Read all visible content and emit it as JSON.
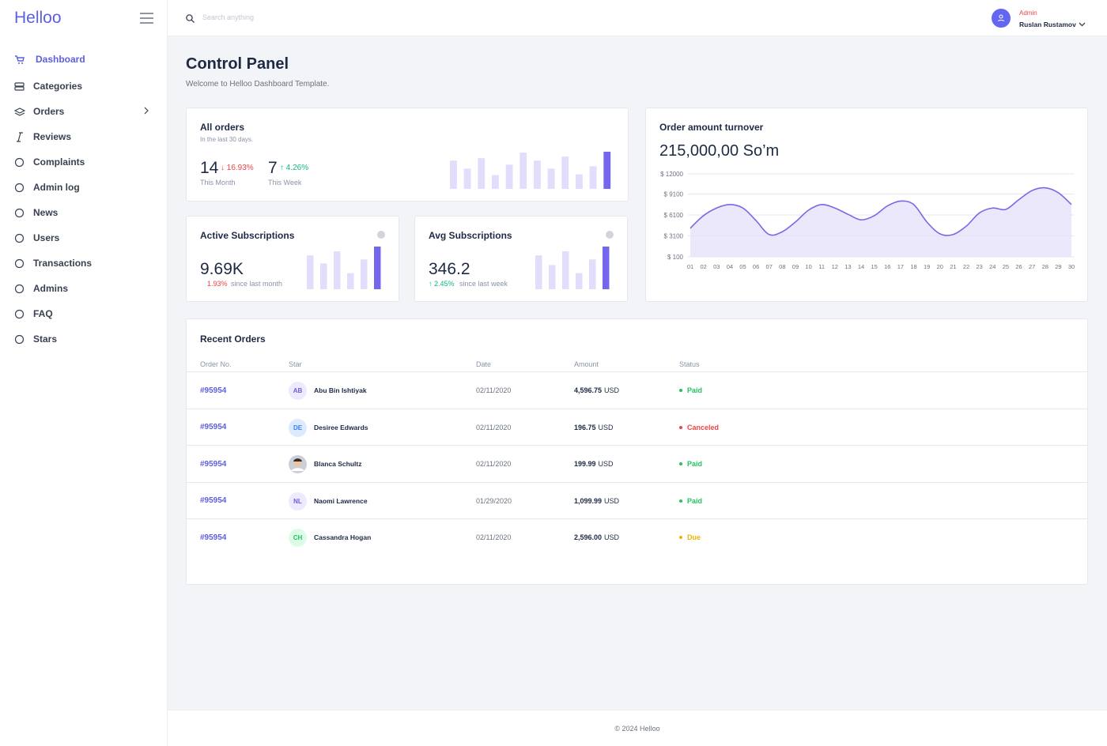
{
  "sidebar": {
    "brand": "Helloo",
    "nav": [
      "Dashboard",
      "Categories",
      "Orders",
      "Reviews",
      "Complaints",
      "Admin log",
      "News",
      "Users",
      "Transactions",
      "Admins",
      "FAQ",
      "Stars"
    ],
    "active": 0
  },
  "header": {
    "search_placeholder": "Search anything",
    "role": "Admin",
    "user": "Ruslan Rustamov"
  },
  "page": {
    "title": "Control Panel",
    "subtitle": "Welcome to Helloo Dashboard Template."
  },
  "cards": {
    "all_orders": {
      "title": "All orders",
      "subtitle": "In the last 30 days.",
      "month_value": "14",
      "month_change": "↓ 16.93%",
      "month_label": "This Month",
      "week_value": "7",
      "week_change": "↑ 4.26%",
      "week_label": "This Week"
    },
    "active": {
      "title": "Active Subscriptions",
      "value": "9.69K",
      "change": "1.93%",
      "note": "since last month"
    },
    "avg": {
      "title": "Avg Subscriptions",
      "value": "346.2",
      "change": "↑ 2.45%",
      "note": "since last week"
    },
    "turnover": {
      "title": "Order amount turnover",
      "value": "215,000,00 So’m"
    }
  },
  "chart_data": [
    {
      "type": "bar",
      "values": [
        35,
        25,
        38,
        17,
        30,
        45,
        35,
        25,
        40,
        18,
        28,
        46
      ],
      "color": "#e1ddfb",
      "highlight_color": "#7467ee"
    },
    {
      "type": "bar",
      "values": [
        42,
        32,
        47,
        20,
        37,
        53
      ],
      "color": "#e1ddfb",
      "highlight_color": "#7467ee"
    },
    {
      "type": "bar",
      "values": [
        42,
        30,
        47,
        20,
        37,
        53
      ],
      "color": "#e1ddfb",
      "highlight_color": "#7467ee"
    },
    {
      "type": "line",
      "color": "#7a68e6",
      "fill": "#e6e2fb",
      "grid": true,
      "categories": [
        "01",
        "02",
        "03",
        "04",
        "05",
        "06",
        "07",
        "08",
        "09",
        "10",
        "11",
        "12",
        "13",
        "14",
        "15",
        "16",
        "17",
        "18",
        "19",
        "20",
        "21",
        "22",
        "23",
        "24",
        "25",
        "26",
        "27",
        "28",
        "29",
        "30"
      ],
      "values": [
        4200,
        6000,
        7100,
        7600,
        7100,
        5300,
        3300,
        3700,
        5100,
        6800,
        7600,
        7100,
        6200,
        5400,
        6000,
        7400,
        8100,
        7600,
        5100,
        3400,
        3300,
        4500,
        6400,
        7100,
        6900,
        8300,
        9600,
        10000,
        9300,
        7600
      ],
      "ylim": [
        100,
        12000
      ],
      "yticks": [
        {
          "value": 100,
          "label": "$ 100"
        },
        {
          "value": 3100,
          "label": "$ 3100"
        },
        {
          "value": 6100,
          "label": "$ 6100"
        },
        {
          "value": 9100,
          "label": "$ 9100"
        },
        {
          "value": 12000,
          "label": "$ 12000"
        }
      ]
    }
  ],
  "orders": {
    "title": "Recent Orders",
    "columns": [
      "Order No.",
      "Star",
      "Date",
      "Amount",
      "Status"
    ],
    "rows": [
      {
        "order": "#95954",
        "initials": "AB",
        "name": "Abu Bin Ishtiyak",
        "date": "02/11/2020",
        "amount": "4,596.75",
        "currency": "USD",
        "status": "Paid",
        "status_color": "#22c55e"
      },
      {
        "order": "#95954",
        "initials": "DE",
        "name": "Desiree Edwards",
        "date": "02/11/2020",
        "amount": "196.75",
        "currency": "USD",
        "status": "Canceled",
        "status_color": "#ef4444"
      },
      {
        "order": "#95954",
        "name": "Blanca Schultz",
        "date": "02/11/2020",
        "amount": "199.99",
        "currency": "USD",
        "status": "Paid",
        "status_color": "#22c55e"
      },
      {
        "order": "#95954",
        "initials": "NL",
        "name": "Naomi Lawrence",
        "date": "01/29/2020",
        "amount": "1,099.99",
        "currency": "USD",
        "status": "Paid",
        "status_color": "#22c55e"
      },
      {
        "order": "#95954",
        "initials": "CH",
        "name": "Cassandra Hogan",
        "date": "02/11/2020",
        "amount": "2,596.00",
        "currency": "USD",
        "status": "Due",
        "status_color": "#eab308"
      }
    ]
  },
  "footer": "© 2024 Helloo"
}
